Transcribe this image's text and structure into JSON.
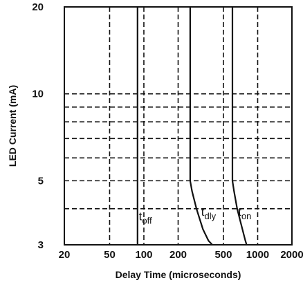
{
  "chart_data": {
    "type": "line",
    "xlabel": "Delay Time (microseconds)",
    "ylabel": "LED Current (mA)",
    "x_scale": "log",
    "y_scale": "log",
    "xlim": [
      20,
      2000
    ],
    "ylim": [
      3,
      20
    ],
    "x_ticks": [
      20,
      50,
      100,
      200,
      500,
      1000,
      2000
    ],
    "x_tick_labels": [
      "20",
      "50",
      "100",
      "200",
      "500",
      "1000",
      "2000"
    ],
    "y_ticks": [
      3,
      5,
      10,
      20
    ],
    "y_tick_labels": [
      "3",
      "5",
      "10",
      "20"
    ],
    "x_gridlines": [
      50,
      100,
      200,
      500,
      1000
    ],
    "y_gridlines": [
      4,
      5,
      6,
      7,
      8,
      9,
      10
    ],
    "grid": true,
    "series": [
      {
        "label_main": "t",
        "label_sub": "off",
        "points": [
          [
            88,
            3
          ],
          [
            88,
            20
          ]
        ]
      },
      {
        "label_main": "t",
        "label_sub": "dly",
        "points": [
          [
            255,
            20
          ],
          [
            255,
            5
          ],
          [
            265,
            4.6
          ],
          [
            290,
            4.0
          ],
          [
            330,
            3.4
          ],
          [
            370,
            3.1
          ],
          [
            400,
            3.0
          ]
        ]
      },
      {
        "label_main": "t",
        "label_sub": "on",
        "points": [
          [
            600,
            20
          ],
          [
            600,
            5
          ],
          [
            620,
            4.6
          ],
          [
            660,
            4.0
          ],
          [
            720,
            3.5
          ],
          [
            780,
            3.1
          ],
          [
            800,
            3.0
          ]
        ]
      }
    ]
  }
}
